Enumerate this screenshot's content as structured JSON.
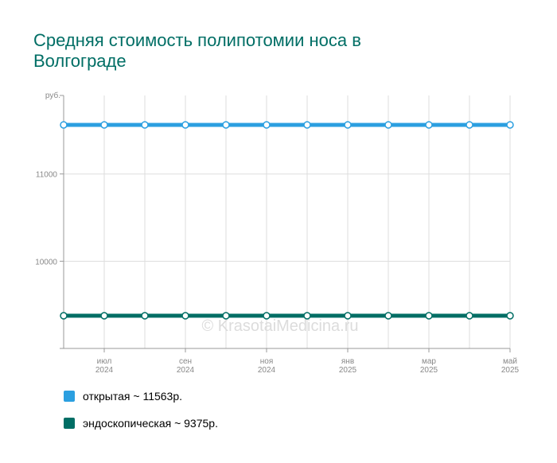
{
  "chart_data": {
    "type": "line",
    "title": "Средняя стоимость полипотомии носа в Волгограде",
    "y_unit_label": "руб.",
    "ylim": [
      9000,
      11900
    ],
    "y_ticks": [
      {
        "value": 10000,
        "label": "10000"
      },
      {
        "value": 11000,
        "label": "11000"
      }
    ],
    "x": [
      "2024-06",
      "2024-07",
      "2024-08",
      "2024-09",
      "2024-10",
      "2024-11",
      "2024-12",
      "2025-01",
      "2025-02",
      "2025-03",
      "2025-04",
      "2025-05"
    ],
    "x_tick_labels": [
      {
        "index": 1,
        "month": "июл",
        "year": "2024"
      },
      {
        "index": 3,
        "month": "сен",
        "year": "2024"
      },
      {
        "index": 5,
        "month": "ноя",
        "year": "2024"
      },
      {
        "index": 7,
        "month": "янв",
        "year": "2025"
      },
      {
        "index": 9,
        "month": "мар",
        "year": "2025"
      },
      {
        "index": 11,
        "month": "май",
        "year": "2025"
      }
    ],
    "grid": true,
    "legend_position": "bottom-left",
    "series": [
      {
        "name": "открытая",
        "color": "#2b9fe0",
        "values": [
          11563,
          11563,
          11563,
          11563,
          11563,
          11563,
          11563,
          11563,
          11563,
          11563,
          11563,
          11563
        ],
        "legend_label": "открытая ~ 11563р."
      },
      {
        "name": "эндоскопическая",
        "color": "#006e65",
        "values": [
          9375,
          9375,
          9375,
          9375,
          9375,
          9375,
          9375,
          9375,
          9375,
          9375,
          9375,
          9375
        ],
        "legend_label": "эндоскопическая ~ 9375р."
      }
    ],
    "watermark": "© KrasotaiMedicina.ru"
  }
}
